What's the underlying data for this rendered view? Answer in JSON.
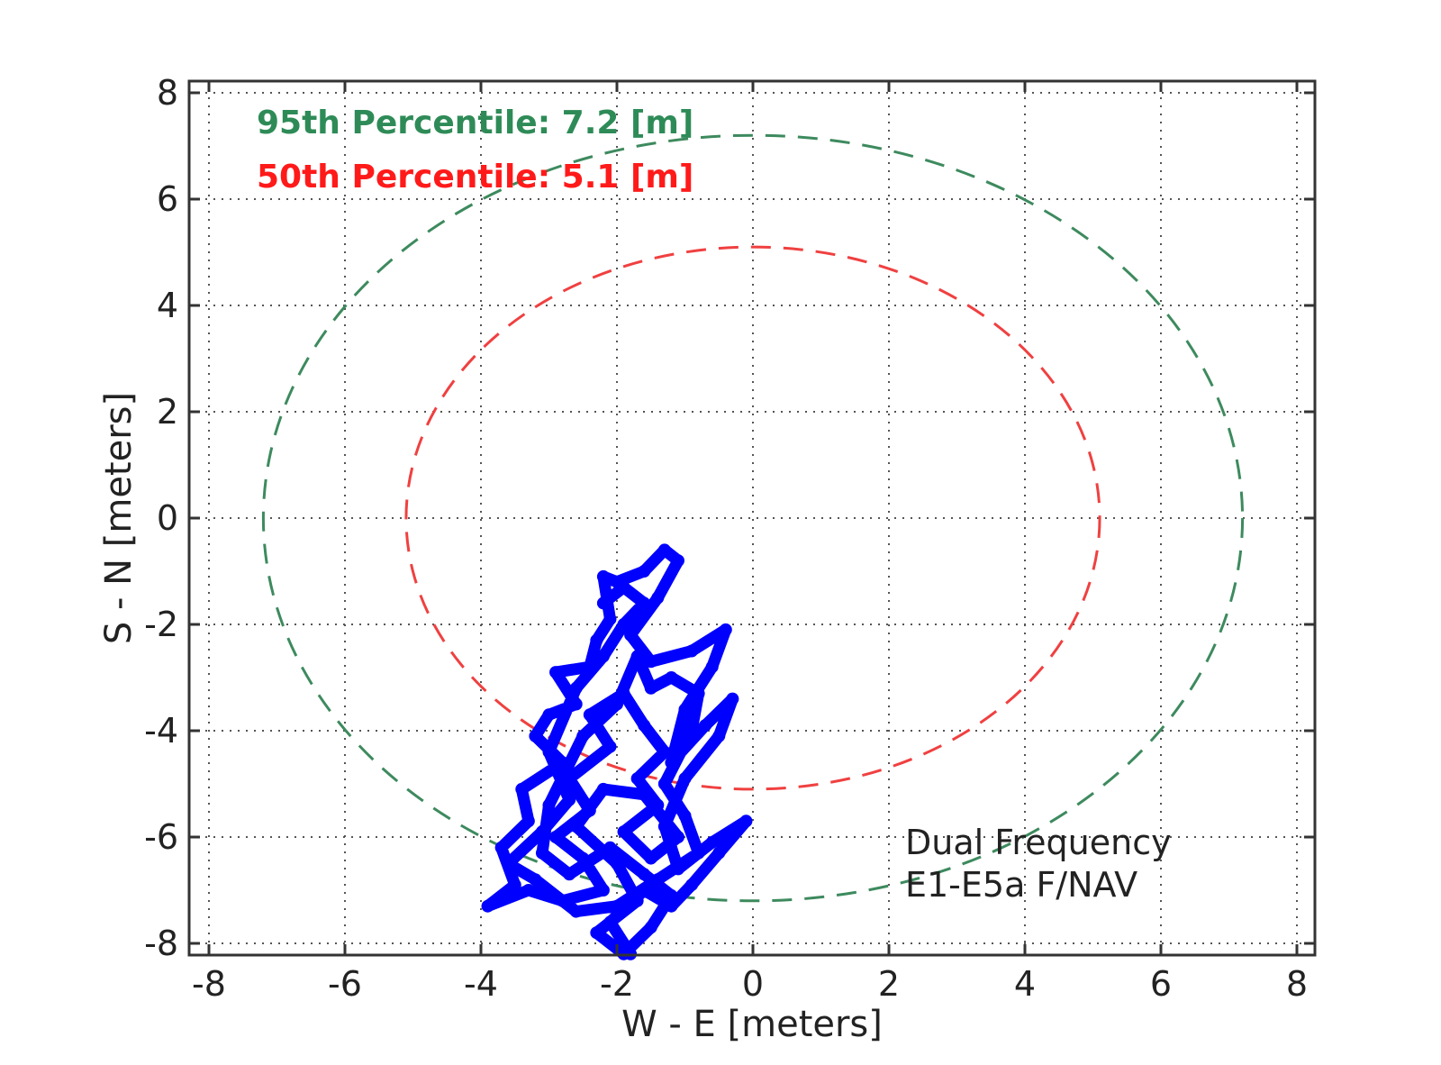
{
  "chart_data": {
    "type": "scatter",
    "title": "",
    "xlabel": "W - E [meters]",
    "ylabel": "S - N [meters]",
    "xlim": [
      -8,
      8
    ],
    "ylim": [
      -8,
      8
    ],
    "grid": true,
    "x_ticks": [
      -8,
      -6,
      -4,
      -2,
      0,
      2,
      4,
      6,
      8
    ],
    "y_ticks": [
      -8,
      -6,
      -4,
      -2,
      0,
      2,
      4,
      6,
      8
    ],
    "annotations": [
      {
        "text": "95th Percentile: 7.2 [m]",
        "color": "#2e8b57"
      },
      {
        "text": "50th Percentile: 5.1 [m]",
        "color": "#ff1a1a"
      }
    ],
    "legend_lines": [
      "Dual Frequency",
      "E1-E5a F/NAV"
    ],
    "circles": [
      {
        "name": "95th Percentile",
        "radius": 7.2,
        "center": [
          0,
          0
        ],
        "color": "#3d8a5e",
        "style": "dashed"
      },
      {
        "name": "50th Percentile",
        "radius": 5.1,
        "center": [
          0,
          0
        ],
        "color": "#f04040",
        "style": "dashed"
      }
    ],
    "series": [
      {
        "name": "Position error trace",
        "color": "#0000ff",
        "points": [
          [
            -1.8,
            -8.2
          ],
          [
            -2.1,
            -7.6
          ],
          [
            -1.6,
            -7.0
          ],
          [
            -1.2,
            -7.3
          ],
          [
            -0.9,
            -6.9
          ],
          [
            -0.5,
            -6.3
          ],
          [
            -0.1,
            -5.7
          ],
          [
            -0.6,
            -6.1
          ],
          [
            -1.1,
            -6.6
          ],
          [
            -1.3,
            -5.8
          ],
          [
            -1.0,
            -4.9
          ],
          [
            -0.5,
            -4.1
          ],
          [
            -0.3,
            -3.4
          ],
          [
            -0.7,
            -3.9
          ],
          [
            -1.2,
            -4.6
          ],
          [
            -1.0,
            -3.6
          ],
          [
            -0.6,
            -2.8
          ],
          [
            -0.4,
            -2.1
          ],
          [
            -0.9,
            -2.5
          ],
          [
            -1.5,
            -2.7
          ],
          [
            -1.8,
            -2.2
          ],
          [
            -1.4,
            -1.5
          ],
          [
            -1.1,
            -0.8
          ],
          [
            -1.3,
            -0.6
          ],
          [
            -1.6,
            -1.0
          ],
          [
            -2.0,
            -1.2
          ],
          [
            -2.2,
            -1.1
          ],
          [
            -2.1,
            -1.9
          ],
          [
            -2.3,
            -2.3
          ],
          [
            -2.4,
            -2.8
          ],
          [
            -2.9,
            -2.9
          ],
          [
            -2.6,
            -3.5
          ],
          [
            -3.0,
            -3.7
          ],
          [
            -3.2,
            -4.1
          ],
          [
            -2.8,
            -4.6
          ],
          [
            -3.4,
            -5.1
          ],
          [
            -3.3,
            -5.7
          ],
          [
            -3.7,
            -6.2
          ],
          [
            -3.5,
            -6.9
          ],
          [
            -3.9,
            -7.3
          ],
          [
            -3.3,
            -7.0
          ],
          [
            -2.8,
            -7.2
          ],
          [
            -2.2,
            -7.0
          ],
          [
            -2.5,
            -6.4
          ],
          [
            -2.9,
            -6.0
          ],
          [
            -2.4,
            -5.5
          ],
          [
            -2.7,
            -4.9
          ],
          [
            -2.1,
            -4.3
          ],
          [
            -2.4,
            -3.7
          ],
          [
            -1.9,
            -3.3
          ],
          [
            -1.6,
            -3.9
          ],
          [
            -1.3,
            -4.4
          ],
          [
            -1.7,
            -4.9
          ],
          [
            -1.4,
            -5.4
          ],
          [
            -1.9,
            -5.9
          ],
          [
            -1.5,
            -6.4
          ],
          [
            -1.1,
            -6.0
          ],
          [
            -1.6,
            -5.2
          ],
          [
            -2.2,
            -5.1
          ],
          [
            -2.6,
            -5.8
          ],
          [
            -2.0,
            -6.5
          ],
          [
            -1.7,
            -7.2
          ],
          [
            -2.3,
            -7.8
          ],
          [
            -1.9,
            -8.2
          ],
          [
            -1.5,
            -7.7
          ],
          [
            -1.2,
            -7.1
          ],
          [
            -1.6,
            -6.7
          ],
          [
            -2.1,
            -6.2
          ],
          [
            -2.7,
            -6.7
          ],
          [
            -3.1,
            -6.3
          ],
          [
            -3.0,
            -5.4
          ],
          [
            -2.5,
            -4.1
          ],
          [
            -2.0,
            -3.5
          ],
          [
            -1.7,
            -2.6
          ],
          [
            -1.5,
            -3.2
          ],
          [
            -1.2,
            -3.0
          ],
          [
            -0.8,
            -3.3
          ],
          [
            -0.9,
            -4.0
          ],
          [
            -1.3,
            -5.0
          ],
          [
            -1.0,
            -5.6
          ],
          [
            -0.8,
            -6.3
          ],
          [
            -1.4,
            -6.8
          ],
          [
            -2.0,
            -7.3
          ],
          [
            -2.6,
            -7.4
          ],
          [
            -3.2,
            -6.8
          ],
          [
            -3.6,
            -6.5
          ],
          [
            -3.1,
            -5.9
          ],
          [
            -2.7,
            -5.3
          ],
          [
            -3.0,
            -4.4
          ],
          [
            -2.6,
            -3.2
          ],
          [
            -2.2,
            -2.6
          ],
          [
            -1.9,
            -2.0
          ],
          [
            -1.6,
            -1.6
          ],
          [
            -1.9,
            -1.3
          ],
          [
            -2.2,
            -1.6
          ]
        ]
      }
    ]
  }
}
